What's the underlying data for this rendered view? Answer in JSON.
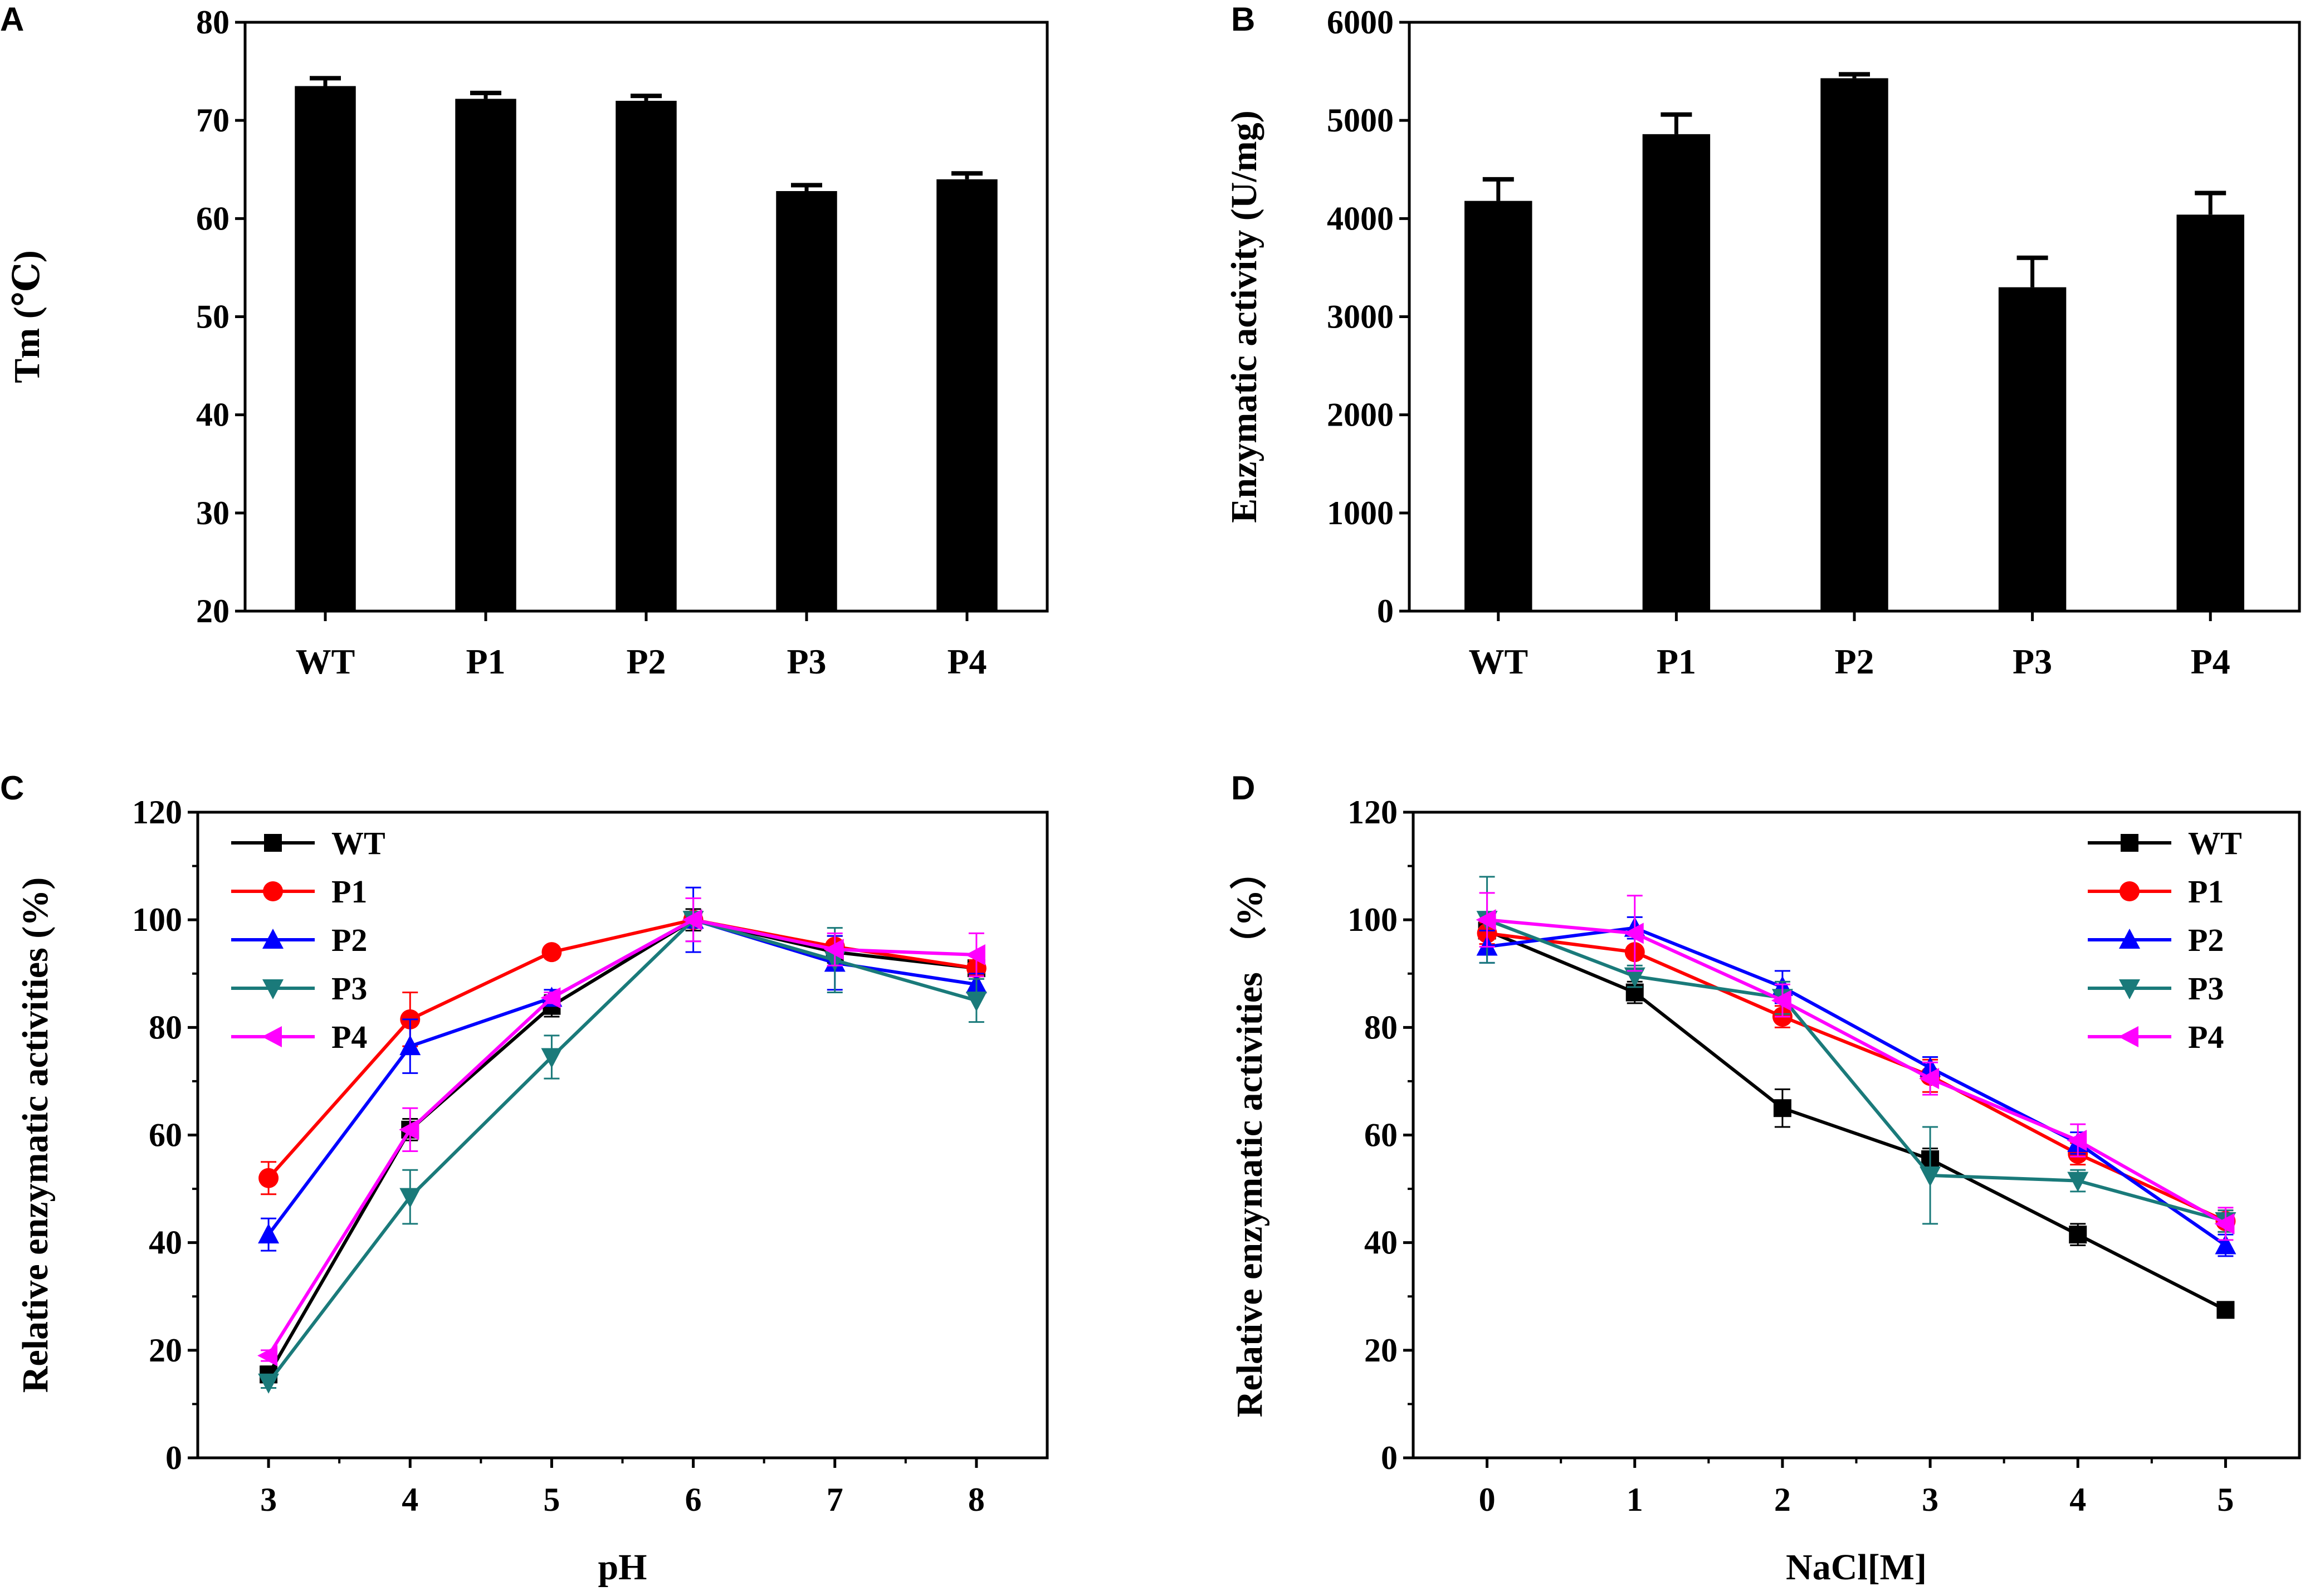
{
  "chart_data": [
    {
      "panel": "A",
      "type": "bar",
      "categories": [
        "WT",
        "P1",
        "P2",
        "P3",
        "P4"
      ],
      "values": [
        73.5,
        72.2,
        72.0,
        62.8,
        64.0
      ],
      "errors": [
        0.8,
        0.6,
        0.5,
        0.6,
        0.6
      ],
      "ylabel": "Tm (℃)",
      "xlabel": "",
      "ylim": [
        20,
        80
      ],
      "yticks": [
        20,
        30,
        40,
        50,
        60,
        70,
        80
      ],
      "color": "#000000"
    },
    {
      "panel": "B",
      "type": "bar",
      "categories": [
        "WT",
        "P1",
        "P2",
        "P3",
        "P4"
      ],
      "values": [
        4180,
        4860,
        5430,
        3300,
        4040
      ],
      "errors": [
        220,
        200,
        40,
        300,
        220
      ],
      "ylabel": "Enzymatic activity (U/mg)",
      "xlabel": "",
      "ylim": [
        0,
        6000
      ],
      "yticks": [
        0,
        1000,
        2000,
        3000,
        4000,
        5000,
        6000
      ],
      "color": "#000000"
    },
    {
      "panel": "C",
      "type": "line",
      "x": [
        3,
        4,
        5,
        6,
        7,
        8
      ],
      "xlim": [
        2.5,
        8.5
      ],
      "xticks": [
        3,
        4,
        5,
        6,
        7,
        8
      ],
      "ylim": [
        0,
        120
      ],
      "yticks": [
        0,
        20,
        40,
        60,
        80,
        100,
        120
      ],
      "xlabel": "pH",
      "ylabel": "Relative enzymatic activities (%)",
      "legend_position": "top-left",
      "series": [
        {
          "name": "WT",
          "color": "#000000",
          "marker": "square",
          "values": [
            15.5,
            61,
            84,
            100,
            94,
            91
          ],
          "errors": [
            1.5,
            2,
            2,
            2,
            2,
            1.5
          ]
        },
        {
          "name": "P1",
          "color": "#ff0000",
          "marker": "circle",
          "values": [
            52,
            81.5,
            94,
            100,
            95,
            91
          ],
          "errors": [
            3,
            5,
            1,
            1,
            2,
            1.5
          ]
        },
        {
          "name": "P2",
          "color": "#0000ff",
          "marker": "triangle-up",
          "values": [
            41.5,
            76.5,
            85.5,
            100,
            92,
            88
          ],
          "errors": [
            3,
            5,
            1.5,
            6,
            5,
            2
          ]
        },
        {
          "name": "P3",
          "color": "#1a7a7a",
          "marker": "triangle-down",
          "values": [
            14,
            48.5,
            74.5,
            100,
            92.5,
            85
          ],
          "errors": [
            1,
            5,
            4,
            4,
            6,
            4
          ]
        },
        {
          "name": "P4",
          "color": "#ff00ff",
          "marker": "triangle-left",
          "values": [
            19,
            61,
            85.5,
            100,
            94.5,
            93.5
          ],
          "errors": [
            1,
            4,
            1,
            4,
            3,
            4
          ]
        }
      ]
    },
    {
      "panel": "D",
      "type": "line",
      "x": [
        0,
        1,
        2,
        3,
        4,
        5
      ],
      "xlim": [
        -0.5,
        5.5
      ],
      "xticks": [
        0,
        1,
        2,
        3,
        4,
        5
      ],
      "ylim": [
        0,
        120
      ],
      "yticks": [
        0,
        20,
        40,
        60,
        80,
        100,
        120
      ],
      "xlabel": "NaCl[M]",
      "ylabel": "Relative enzymatic activities （%）",
      "legend_position": "top-right",
      "series": [
        {
          "name": "WT",
          "color": "#000000",
          "marker": "square",
          "values": [
            98,
            86.5,
            65,
            55.5,
            41.5,
            27.5
          ],
          "errors": [
            1,
            2,
            3.5,
            2,
            2,
            1
          ]
        },
        {
          "name": "P1",
          "color": "#ff0000",
          "marker": "circle",
          "values": [
            97.5,
            94,
            82,
            71,
            56.5,
            44
          ],
          "errors": [
            2,
            3,
            2,
            3,
            2,
            2
          ]
        },
        {
          "name": "P2",
          "color": "#0000ff",
          "marker": "triangle-up",
          "values": [
            95,
            98.5,
            87.5,
            72.5,
            58.5,
            39.5
          ],
          "errors": [
            3,
            2,
            3,
            2,
            2,
            2
          ]
        },
        {
          "name": "P3",
          "color": "#1a7a7a",
          "marker": "triangle-down",
          "values": [
            100,
            89.5,
            85.5,
            52.5,
            51.5,
            44
          ],
          "errors": [
            8,
            2,
            3,
            9,
            2,
            2
          ]
        },
        {
          "name": "P4",
          "color": "#ff00ff",
          "marker": "triangle-left",
          "values": [
            100,
            97.5,
            85,
            70.5,
            59,
            43.5
          ],
          "errors": [
            5,
            7,
            3,
            3,
            3,
            3
          ]
        }
      ]
    }
  ]
}
